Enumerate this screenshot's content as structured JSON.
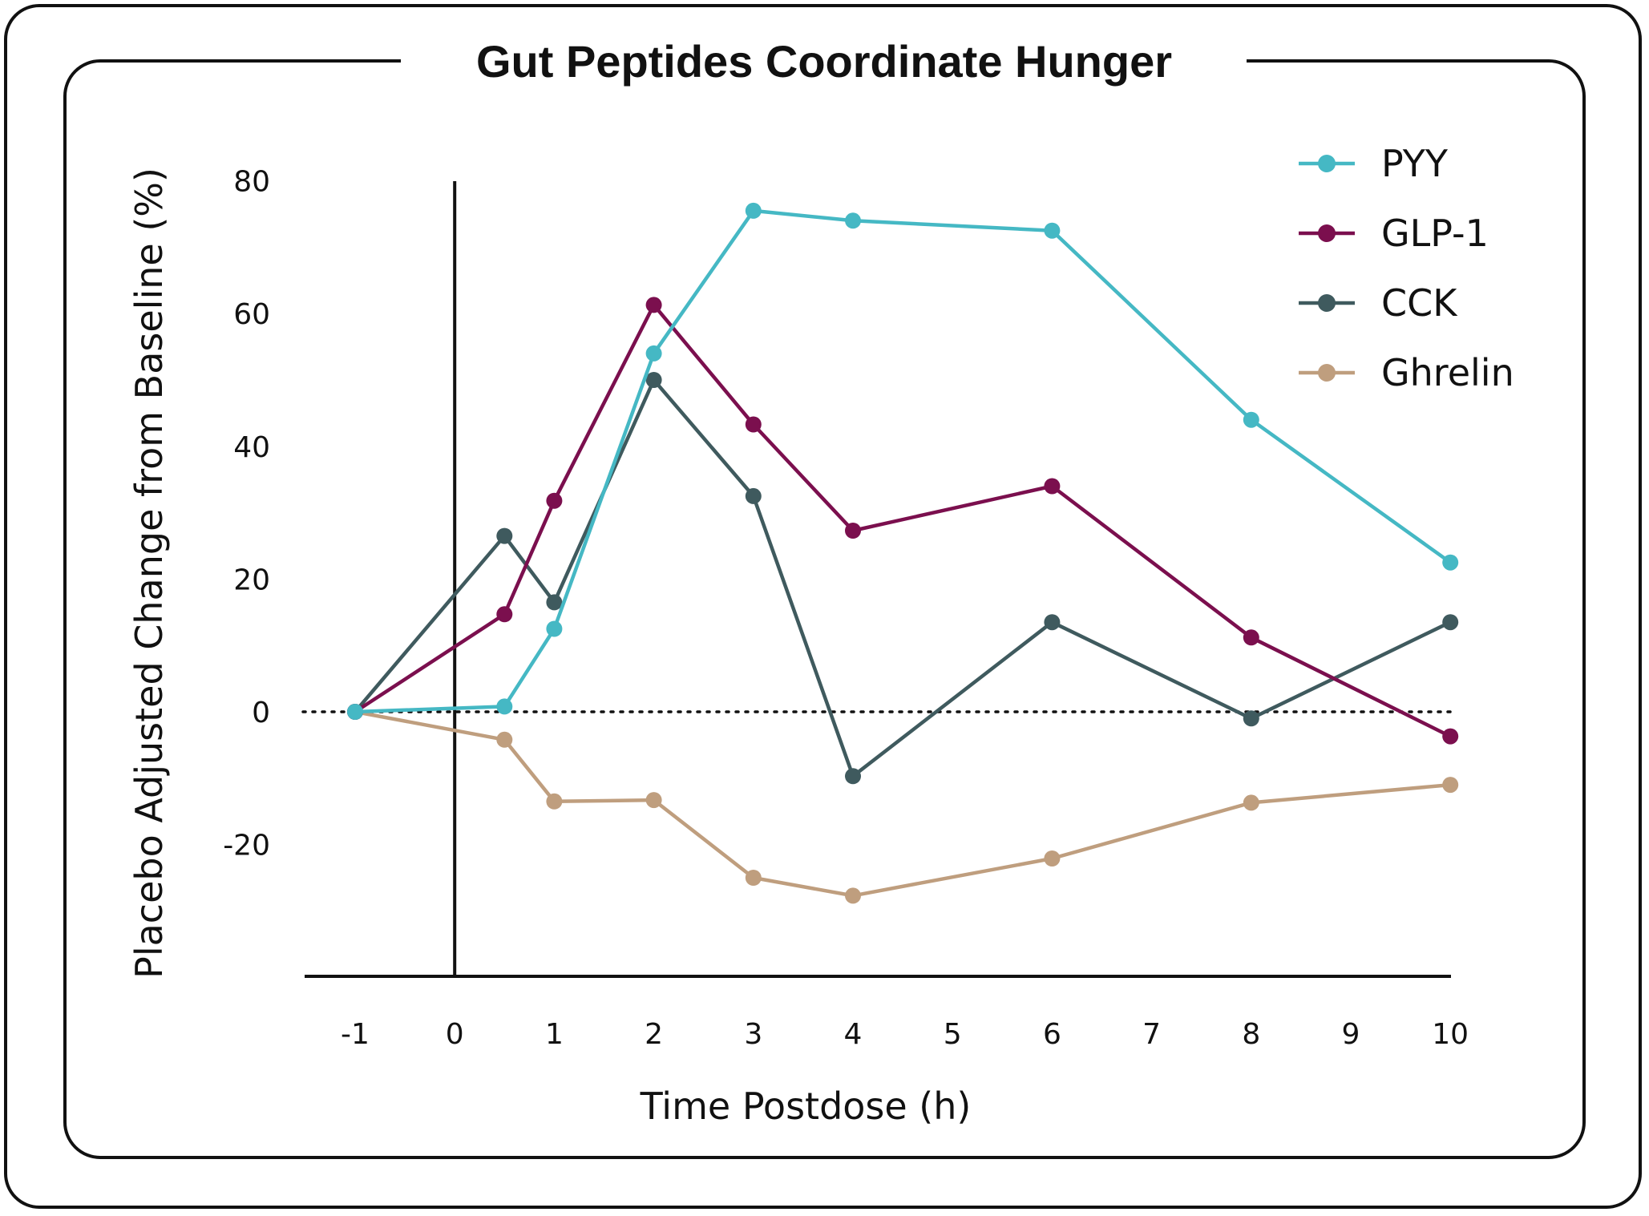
{
  "chart_data": {
    "type": "line",
    "title": "Gut Peptides Coordinate Hunger",
    "xlabel": "Time Postdose (h)",
    "ylabel": "Placebo Adjusted Change from Baseline (%)",
    "x_ticks": [
      "-1",
      "0",
      "1",
      "2",
      "3",
      "4",
      "5",
      "6",
      "7",
      "8",
      "9",
      "10"
    ],
    "y_ticks": [
      "80",
      "60",
      "40",
      "20",
      "0",
      "-20"
    ],
    "xlim": [
      -1,
      10
    ],
    "ylim": [
      -40,
      80
    ],
    "legend_position": "top-right",
    "reference_lines": {
      "vertical_x": 0,
      "dotted_horizontal_y": 0
    },
    "series": [
      {
        "name": "PYY",
        "color": "#45b8c4",
        "points": [
          [
            -1,
            0
          ],
          [
            0.5,
            0.8
          ],
          [
            1,
            12.5
          ],
          [
            2,
            54
          ],
          [
            3,
            75.5
          ],
          [
            4,
            74
          ],
          [
            6,
            72.5
          ],
          [
            8,
            44
          ],
          [
            10,
            22.5
          ]
        ]
      },
      {
        "name": "GLP-1",
        "color": "#7b0f4e",
        "points": [
          [
            -1,
            0
          ],
          [
            0.5,
            14.7
          ],
          [
            1,
            31.8
          ],
          [
            2,
            61.3
          ],
          [
            3,
            43.3
          ],
          [
            4,
            27.3
          ],
          [
            6,
            34
          ],
          [
            8,
            11.2
          ],
          [
            10,
            -3.7
          ]
        ]
      },
      {
        "name": "CCK",
        "color": "#3f5a5e",
        "points": [
          [
            -1,
            0
          ],
          [
            0.5,
            26.5
          ],
          [
            1,
            16.5
          ],
          [
            2,
            50
          ],
          [
            3,
            32.5
          ],
          [
            4,
            -9.7
          ],
          [
            6,
            13.5
          ],
          [
            8,
            -1
          ],
          [
            10,
            13.5
          ]
        ]
      },
      {
        "name": "Ghrelin",
        "color": "#bf9e7e",
        "points": [
          [
            -1,
            0
          ],
          [
            0.5,
            -4.2
          ],
          [
            1,
            -13.5
          ],
          [
            2,
            -13.3
          ],
          [
            3,
            -25
          ],
          [
            4,
            -27.7
          ],
          [
            6,
            -22.1
          ],
          [
            8,
            -13.7
          ],
          [
            10,
            -11
          ]
        ]
      }
    ]
  }
}
